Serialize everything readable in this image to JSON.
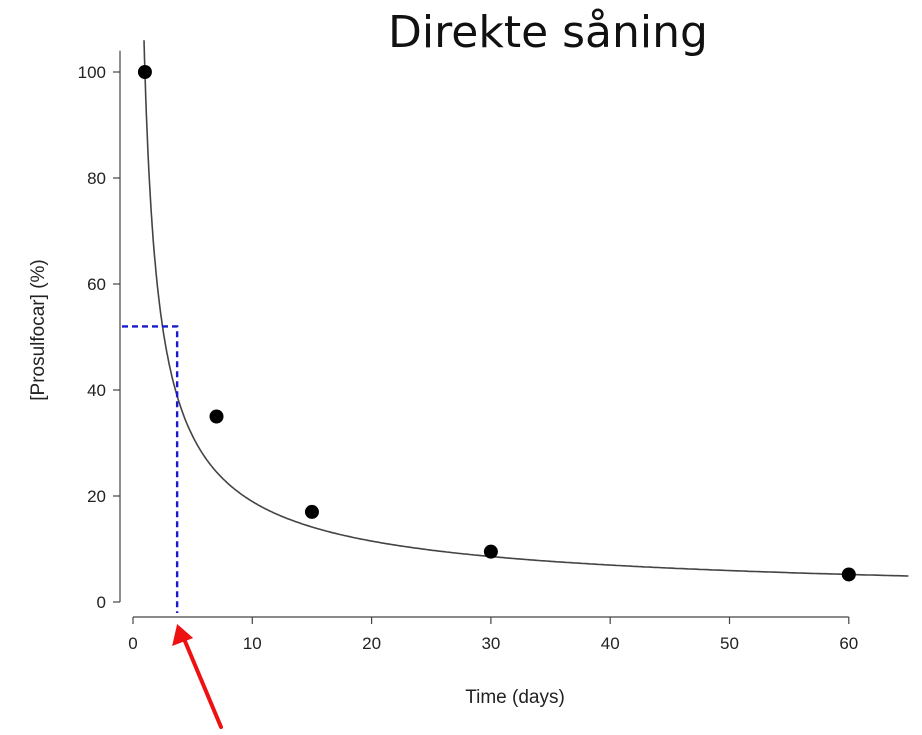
{
  "chart_data": {
    "type": "scatter",
    "title": "Direkte såning",
    "xlabel": "Time (days)",
    "ylabel": "[Prosulfocar] (%)",
    "xlim": [
      -1,
      65
    ],
    "ylim": [
      -2,
      105
    ],
    "x_ticks": [
      "0",
      "10",
      "20",
      "30",
      "40",
      "50",
      "60"
    ],
    "y_ticks": [
      "0",
      "20",
      "40",
      "60",
      "80",
      "100"
    ],
    "grid": false,
    "legend": "none",
    "series": [
      {
        "points": [
          {
            "x": 1,
            "y": 100
          },
          {
            "x": 7,
            "y": 35
          },
          {
            "x": 15,
            "y": 17
          },
          {
            "x": 30,
            "y": 9.5
          },
          {
            "x": 60,
            "y": 5.2
          }
        ]
      }
    ],
    "fitted_curve": "decay",
    "half_life_marker": {
      "x": 3.7,
      "y": 52,
      "color": "#1a1acc"
    },
    "arrow": {
      "points_to_x": 3.7,
      "color": "#ee1111"
    },
    "colors": {
      "points": "#000000",
      "curve": "#444444",
      "axes": "#444444"
    }
  }
}
